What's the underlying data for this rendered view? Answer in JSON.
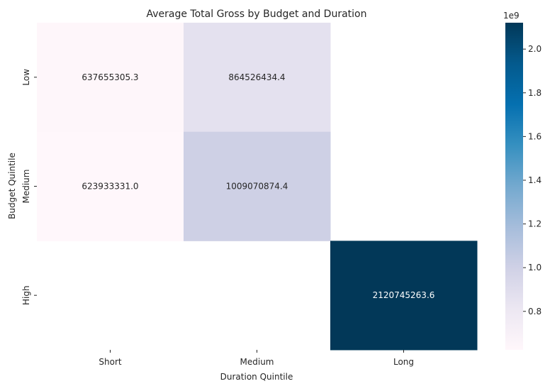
{
  "chart_data": {
    "type": "heatmap",
    "title": "Average Total Gross by Budget and Duration",
    "xlabel": "Duration Quintile",
    "ylabel": "Budget Quintile",
    "x_categories": [
      "Short",
      "Medium",
      "Long"
    ],
    "y_categories": [
      "Low",
      "Medium",
      "High"
    ],
    "values": [
      [
        637655305.3,
        864526434.4,
        null
      ],
      [
        623933331.0,
        1009070874.4,
        null
      ],
      [
        null,
        null,
        2120745263.6
      ]
    ],
    "cell_labels": [
      [
        "637655305.3",
        "864526434.4",
        ""
      ],
      [
        "623933331.0",
        "1009070874.4",
        ""
      ],
      [
        "",
        "",
        "2120745263.6"
      ]
    ],
    "colormap": "PuBu",
    "color_range": [
      623933331.0,
      2120745263.6
    ],
    "colorbar": {
      "offset_label": "1e9",
      "ticks": [
        0.8,
        1.0,
        1.2,
        1.4,
        1.6,
        1.8,
        2.0
      ],
      "tick_labels": [
        "0.8",
        "1.0",
        "1.2",
        "1.4",
        "1.6",
        "1.8",
        "2.0"
      ]
    }
  }
}
